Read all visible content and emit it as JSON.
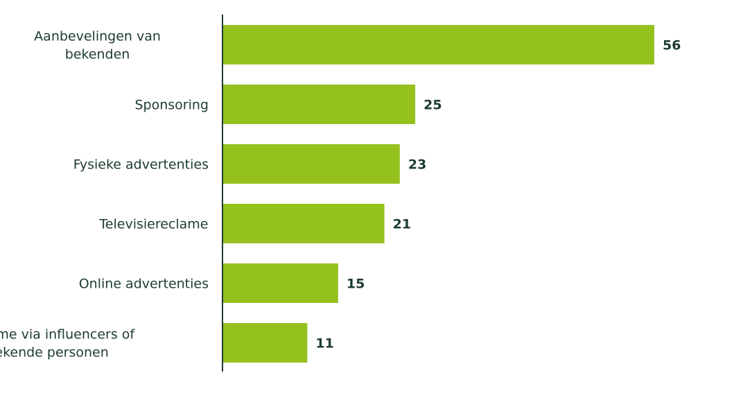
{
  "chart_data": {
    "type": "bar",
    "orientation": "horizontal",
    "categories": [
      "Aanbevelingen van bekenden",
      "Sponsoring",
      "Fysieke advertenties",
      "Televisiereclame",
      "Online advertenties",
      "Reclame via influencers of bekende personen"
    ],
    "category_lines": [
      [
        "Aanbevelingen van",
        "bekenden"
      ],
      [
        "Sponsoring"
      ],
      [
        "Fysieke advertenties"
      ],
      [
        "Televisiereclame"
      ],
      [
        "Online advertenties"
      ],
      [
        "Reclame via influencers of",
        "bekende personen"
      ]
    ],
    "values": [
      56,
      25,
      23,
      21,
      15,
      11
    ],
    "value_labels": [
      "56",
      "25",
      "23",
      "21",
      "15",
      "11"
    ],
    "xlim": [
      0,
      56
    ],
    "grid": false,
    "legend": "none",
    "colors": {
      "bar": "#95c11f",
      "text": "#1d3a33",
      "axis": "#1d3a33"
    }
  }
}
